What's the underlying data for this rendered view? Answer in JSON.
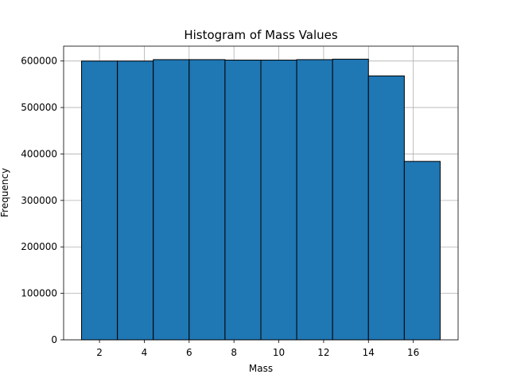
{
  "chart_data": {
    "type": "bar",
    "title": "Histogram of Mass Values",
    "xlabel": "Mass",
    "ylabel": "Frequency",
    "bin_edges": [
      1.2,
      2.8,
      4.4,
      6.0,
      7.6,
      9.2,
      10.8,
      12.4,
      14.0,
      15.6,
      17.2
    ],
    "values": [
      600000,
      600000,
      603000,
      603000,
      602000,
      602000,
      603000,
      604000,
      568000,
      384000
    ],
    "xlim": [
      0.4,
      18.0
    ],
    "ylim": [
      0,
      632000
    ],
    "x_ticks": [
      2,
      4,
      6,
      8,
      10,
      12,
      14,
      16
    ],
    "y_ticks": [
      0,
      100000,
      200000,
      300000,
      400000,
      500000,
      600000
    ],
    "grid": true,
    "bar_color": "#1f77b4",
    "edge_color": "#000000"
  }
}
